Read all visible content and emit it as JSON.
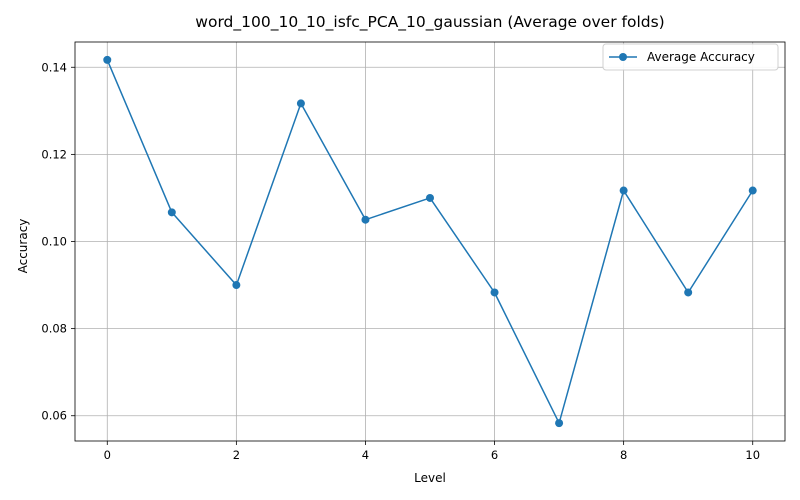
{
  "chart_data": {
    "type": "line",
    "title": "word_100_10_10_isfc_PCA_10_gaussian (Average over folds)",
    "xlabel": "Level",
    "ylabel": "Accuracy",
    "xlim": [
      -0.5,
      10.5
    ],
    "ylim": [
      0.0542,
      0.1458
    ],
    "xticks": [
      0,
      2,
      4,
      6,
      8,
      10
    ],
    "yticks": [
      0.06,
      0.08,
      0.1,
      0.12,
      0.14
    ],
    "xtick_labels": [
      "0",
      "2",
      "4",
      "6",
      "8",
      "10"
    ],
    "ytick_labels": [
      "0.06",
      "0.08",
      "0.10",
      "0.12",
      "0.14"
    ],
    "grid": true,
    "legend_position": "top-right",
    "series": [
      {
        "name": "Average Accuracy",
        "color": "#1f77b4",
        "marker": "circle",
        "x": [
          0,
          1,
          2,
          3,
          4,
          5,
          6,
          7,
          8,
          9,
          10
        ],
        "y": [
          0.1417,
          0.1067,
          0.09,
          0.1317,
          0.105,
          0.11,
          0.0883,
          0.0583,
          0.1117,
          0.0883,
          0.1117
        ]
      }
    ]
  }
}
